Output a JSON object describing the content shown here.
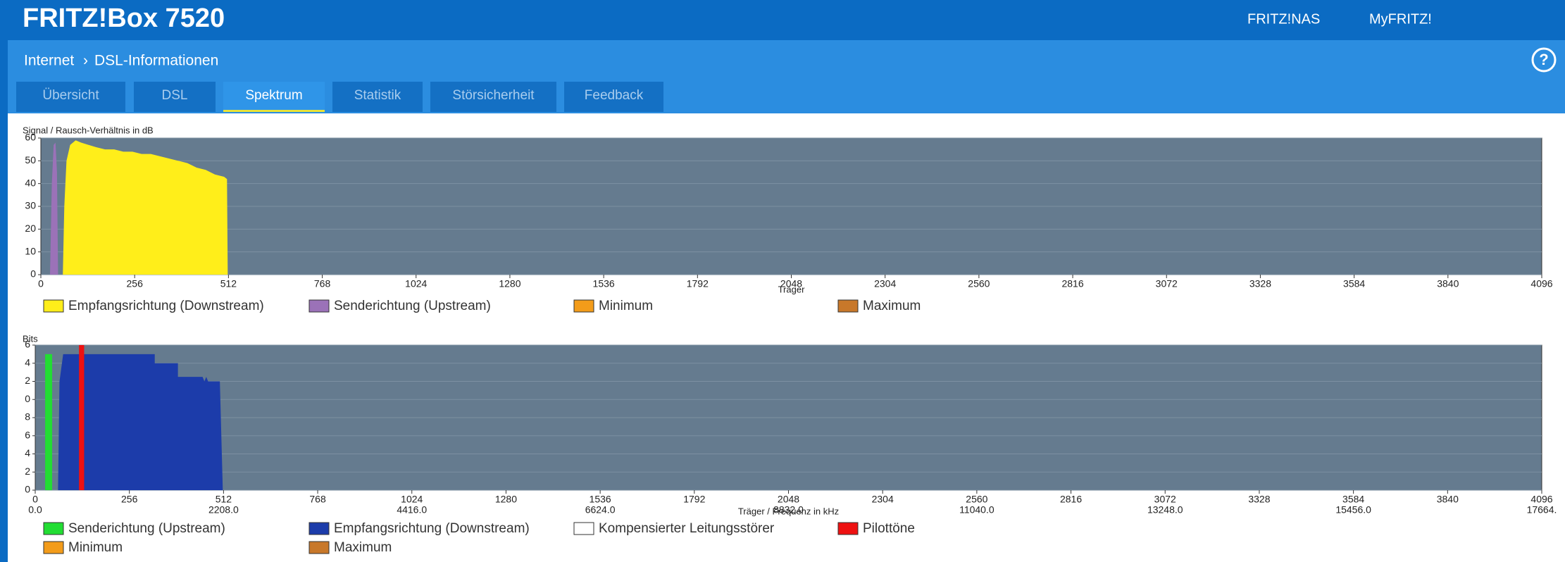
{
  "header": {
    "title": "FRITZ!Box 7520",
    "links": [
      "FRITZ!NAS",
      "MyFRITZ!"
    ]
  },
  "breadcrumb": [
    "Internet",
    "DSL-Informationen"
  ],
  "help": "?",
  "tabs": [
    "Übersicht",
    "DSL",
    "Spektrum",
    "Statistik",
    "Störsicherheit",
    "Feedback"
  ],
  "active_tab": 2,
  "chart_data": [
    {
      "type": "area",
      "ylabel": "Signal / Rausch-Verhältnis in dB",
      "xlabel": "Träger",
      "xlim": [
        0,
        4096
      ],
      "ylim": [
        0,
        60
      ],
      "xticks": [
        0,
        256,
        512,
        768,
        1024,
        1280,
        1536,
        1792,
        2048,
        2304,
        2560,
        2816,
        3072,
        3328,
        3584,
        3840,
        4096
      ],
      "yticks": [
        0,
        10,
        20,
        30,
        40,
        50,
        60
      ],
      "grid": true,
      "series": [
        {
          "name": "Empfangsrichtung (Downstream)",
          "color": "#ffee1a",
          "x": [
            60,
            64,
            70,
            80,
            95,
            110,
            130,
            150,
            175,
            200,
            225,
            250,
            275,
            300,
            325,
            350,
            375,
            400,
            425,
            450,
            475,
            500,
            508,
            510
          ],
          "values": [
            0,
            30,
            50,
            57,
            59,
            58,
            57,
            56,
            55,
            55,
            54,
            54,
            53,
            53,
            52,
            51,
            50,
            49,
            47,
            46,
            44,
            43,
            42,
            0
          ]
        },
        {
          "name": "Senderichtung (Upstream)",
          "color": "#9b72b8",
          "x": [
            25,
            30,
            35,
            40,
            44,
            47
          ],
          "values": [
            0,
            40,
            57,
            58,
            45,
            0
          ]
        },
        {
          "name": "Minimum",
          "color": "#f39c1a",
          "x": [],
          "values": []
        },
        {
          "name": "Maximum",
          "color": "#c8782a",
          "x": [],
          "values": []
        }
      ]
    },
    {
      "type": "area",
      "ylabel": "Bits",
      "xlabel": "Träger / Frequenz in kHz",
      "xlim": [
        0,
        4096
      ],
      "ylim": [
        0,
        16
      ],
      "xticks": [
        0,
        256,
        512,
        768,
        1024,
        1280,
        1536,
        1792,
        2048,
        2304,
        2560,
        2816,
        3072,
        3328,
        3584,
        3840,
        4096
      ],
      "yticks": [
        0,
        {
          "value": 2,
          "label": "2"
        },
        {
          "value": 4,
          "label": "4"
        },
        {
          "value": 6,
          "label": "6"
        },
        {
          "value": 8,
          "label": "8"
        },
        {
          "value": 10,
          "label": "0"
        },
        {
          "value": 12,
          "label": "2"
        },
        {
          "value": 14,
          "label": "4"
        },
        {
          "value": 16,
          "label": "6"
        }
      ],
      "x2lim": [
        0,
        17664
      ],
      "x2ticks": [
        {
          "value": 0,
          "label": "0.0"
        },
        {
          "value": 2208,
          "label": "2208.0"
        },
        {
          "value": 4416,
          "label": "4416.0"
        },
        {
          "value": 6624,
          "label": "6624.0"
        },
        {
          "value": 8832,
          "label": "8832.0"
        },
        {
          "value": 11040,
          "label": "11040.0"
        },
        {
          "value": 13248,
          "label": "13248.0"
        },
        {
          "value": 15456,
          "label": "15456.0"
        },
        {
          "value": 17664,
          "label": "17664."
        }
      ],
      "grid": true,
      "series": [
        {
          "name": "Senderichtung (Upstream)",
          "color": "#22dd33",
          "x": [
            27,
            27,
            46,
            46
          ],
          "values": [
            0,
            15,
            15,
            0
          ]
        },
        {
          "name": "Empfangsrichtung (Downstream)",
          "color": "#1c3caa",
          "x": [
            62,
            66,
            76,
            325,
            325,
            388,
            388,
            455,
            460,
            465,
            470,
            475,
            502,
            510
          ],
          "values": [
            0,
            12,
            15,
            15,
            14,
            14,
            12.5,
            12.5,
            12,
            12.5,
            12,
            12,
            12,
            0
          ]
        },
        {
          "name": "Kompensierter Leitungsstörer",
          "color": "#ffffff",
          "x": [],
          "values": []
        },
        {
          "name": "Pilottöne",
          "color": "#ee1111",
          "x": [
            119,
            119,
            133,
            133
          ],
          "values": [
            0,
            16,
            16,
            0
          ]
        },
        {
          "name": "Minimum",
          "color": "#f39c1a",
          "x": [],
          "values": []
        },
        {
          "name": "Maximum",
          "color": "#c8782a",
          "x": [],
          "values": []
        }
      ]
    }
  ]
}
